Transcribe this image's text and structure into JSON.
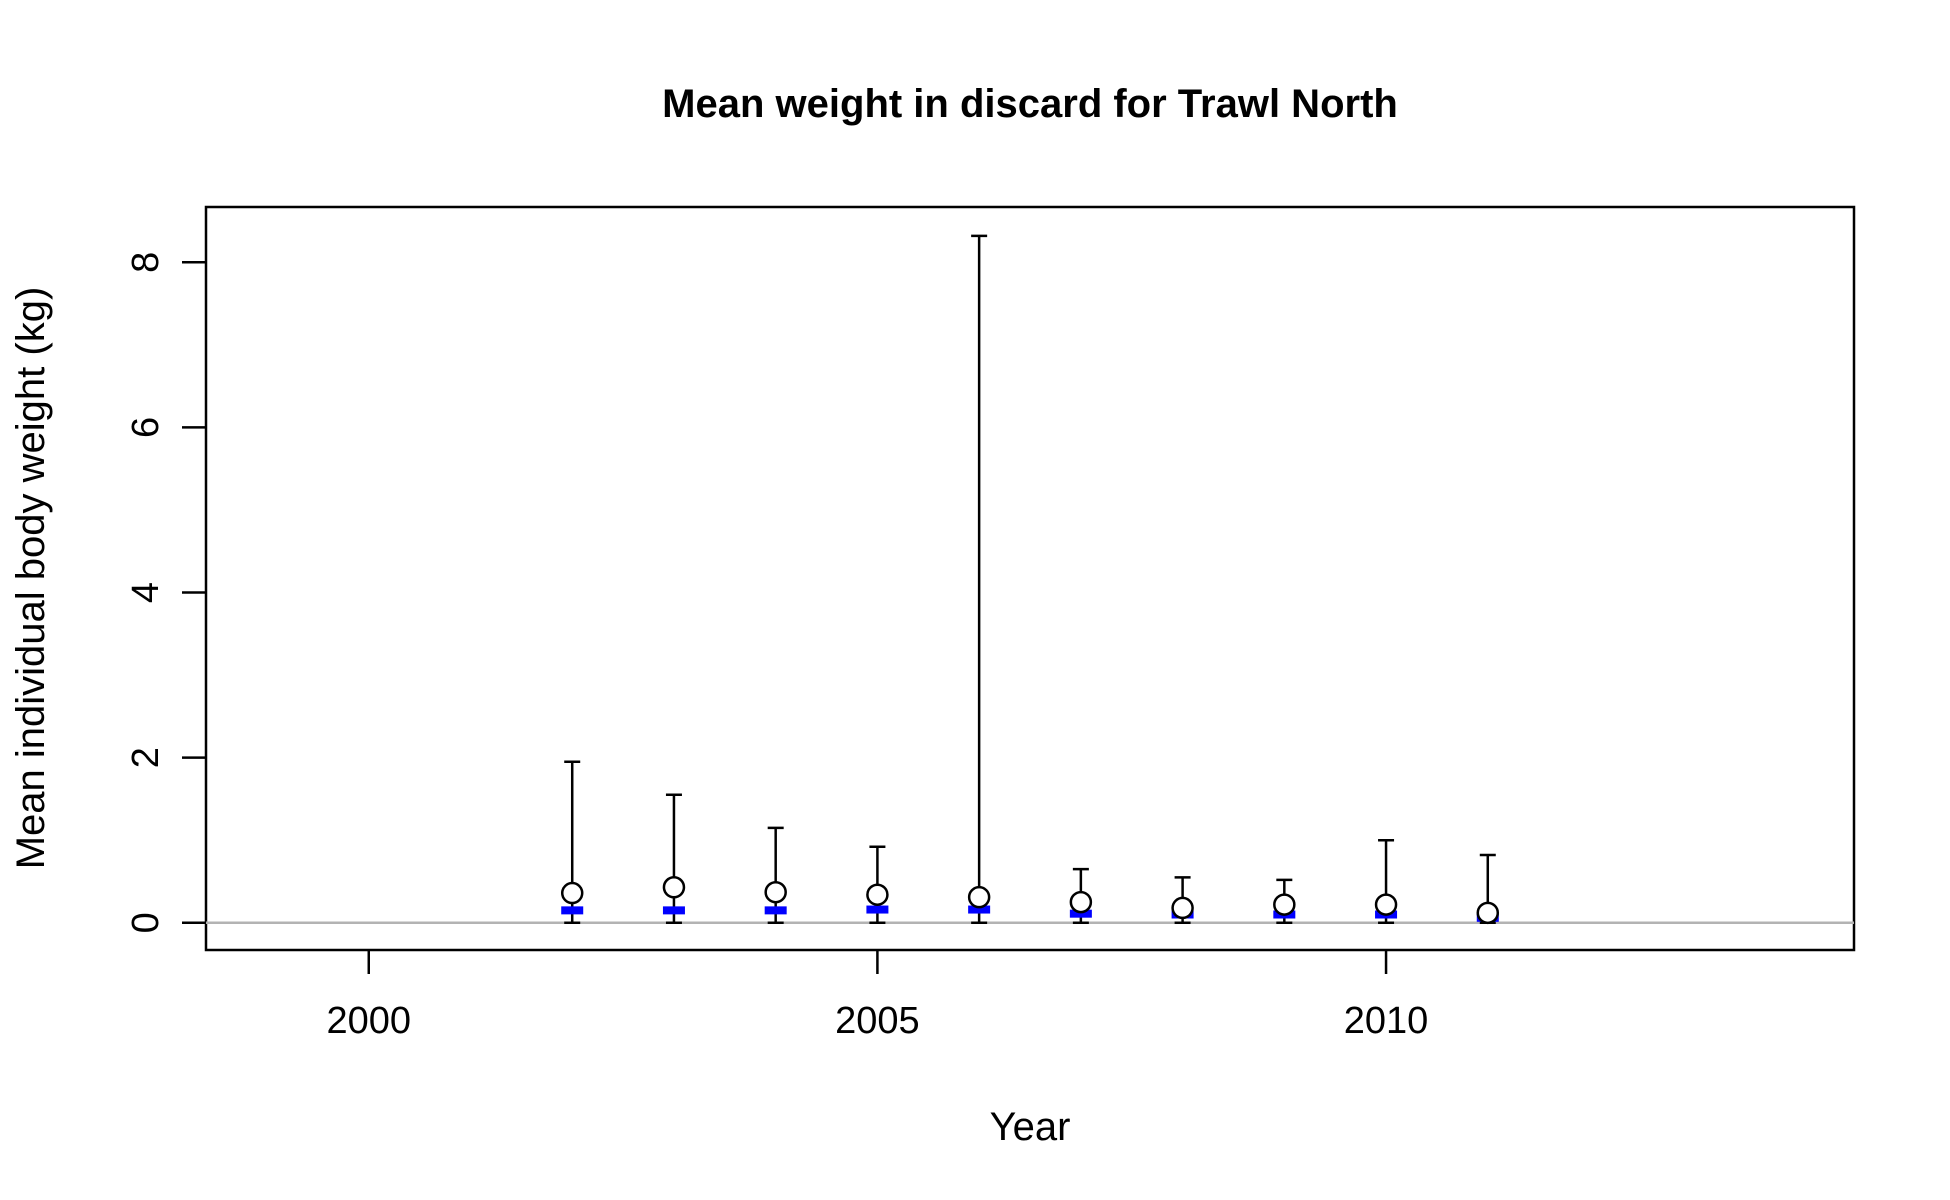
{
  "chart_data": {
    "type": "scatter",
    "title": "Mean weight in discard for Trawl North",
    "xlabel": "Year",
    "ylabel": "Mean individual body weight (kg)",
    "xlim": [
      1998.4,
      2014.6
    ],
    "ylim": [
      -0.33,
      8.67
    ],
    "x_ticks": [
      2000,
      2005,
      2010
    ],
    "y_ticks": [
      0,
      2,
      4,
      6,
      8
    ],
    "reference_line_y": 0,
    "reference_line_color": "#b3b3b3",
    "expected_color": "#0000ff",
    "observed_color": "#000000",
    "grid": false,
    "legend": "none",
    "points": [
      {
        "x": 2002,
        "observed": 0.36,
        "lower": 0.0,
        "upper": 1.95,
        "expected": 0.15
      },
      {
        "x": 2003,
        "observed": 0.43,
        "lower": 0.0,
        "upper": 1.55,
        "expected": 0.15
      },
      {
        "x": 2004,
        "observed": 0.37,
        "lower": 0.0,
        "upper": 1.15,
        "expected": 0.15
      },
      {
        "x": 2005,
        "observed": 0.34,
        "lower": 0.0,
        "upper": 0.92,
        "expected": 0.16
      },
      {
        "x": 2006,
        "observed": 0.31,
        "lower": 0.0,
        "upper": 8.32,
        "expected": 0.16
      },
      {
        "x": 2007,
        "observed": 0.25,
        "lower": 0.0,
        "upper": 0.65,
        "expected": 0.11
      },
      {
        "x": 2008,
        "observed": 0.18,
        "lower": 0.0,
        "upper": 0.55,
        "expected": 0.1
      },
      {
        "x": 2009,
        "observed": 0.22,
        "lower": 0.0,
        "upper": 0.52,
        "expected": 0.1
      },
      {
        "x": 2010,
        "observed": 0.22,
        "lower": 0.0,
        "upper": 1.0,
        "expected": 0.1
      },
      {
        "x": 2011,
        "observed": 0.12,
        "lower": 0.0,
        "upper": 0.82,
        "expected": 0.06
      }
    ]
  }
}
